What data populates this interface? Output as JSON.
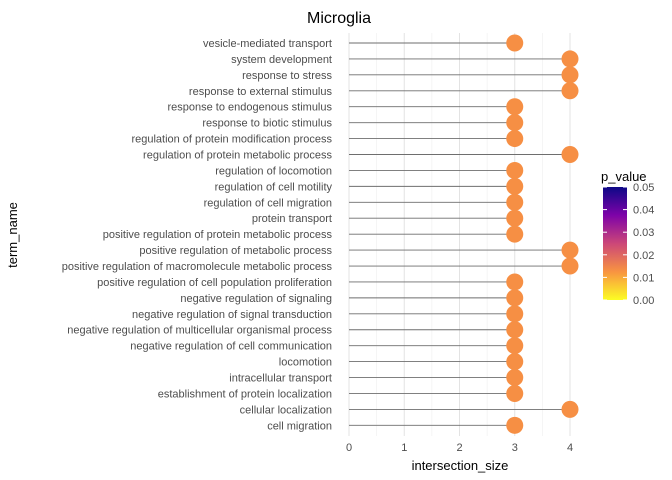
{
  "chart_data": {
    "type": "lollipop",
    "title": "Microglia",
    "xlabel": "intersection_size",
    "ylabel": "term_name",
    "xlim": [
      0,
      4.2
    ],
    "x_ticks": [
      0,
      1,
      2,
      3,
      4
    ],
    "grid": "vertical major and minor gridlines",
    "terms": [
      "vesicle-mediated transport",
      "system development",
      "response to stress",
      "response to external stimulus",
      "response to endogenous stimulus",
      "response to biotic stimulus",
      "regulation of protein modification process",
      "regulation of protein metabolic process",
      "regulation of locomotion",
      "regulation of cell motility",
      "regulation of cell migration",
      "protein transport",
      "positive regulation of protein metabolic process",
      "positive regulation of metabolic process",
      "positive regulation of macromolecule metabolic process",
      "positive regulation of cell population proliferation",
      "negative regulation of signaling",
      "negative regulation of signal transduction",
      "negative regulation of multicellular organismal process",
      "negative regulation of cell communication",
      "locomotion",
      "intracellular transport",
      "establishment of protein localization",
      "cellular localization",
      "cell migration"
    ],
    "values": [
      3,
      4,
      4,
      4,
      3,
      3,
      3,
      4,
      3,
      3,
      3,
      3,
      3,
      4,
      4,
      3,
      3,
      3,
      3,
      3,
      3,
      3,
      3,
      4,
      3
    ],
    "point_color": "#F68F44",
    "stem_color": "#6e6e6e",
    "legend": {
      "title": "p_value",
      "position": "right",
      "scale": "plasma",
      "range": [
        0,
        0.05
      ],
      "ticks": [
        "0.00",
        "0.01",
        "0.02",
        "0.03",
        "0.04",
        "0.05"
      ],
      "colors": [
        "#FCFD24",
        "#F89441",
        "#CC4778",
        "#7E03A8",
        "#0D0887"
      ]
    }
  }
}
